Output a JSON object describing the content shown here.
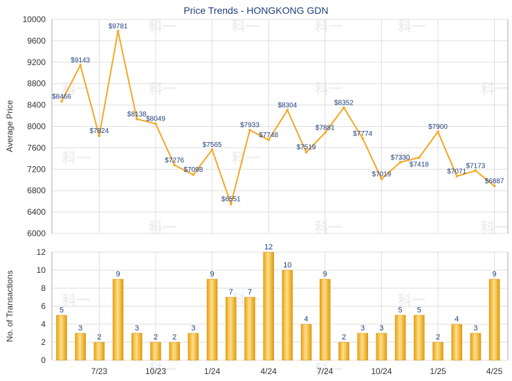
{
  "chart_data": [
    {
      "type": "line",
      "title": "Price Trends - HONGKONG GDN",
      "ylabel": "Average Price",
      "ylim": [
        6000,
        10000
      ],
      "yticks": [
        6000,
        6400,
        6800,
        7200,
        7600,
        8000,
        8400,
        8800,
        9200,
        9600,
        10000
      ],
      "grid": true,
      "line_color": "#f5a623",
      "series": [
        {
          "values": [
            8466,
            9143,
            7824,
            9781,
            8138,
            8049,
            7276,
            7098,
            7565,
            6551,
            7933,
            7748,
            8304,
            7519,
            7881,
            8352,
            7774,
            7019,
            7330,
            7418,
            7900,
            7071,
            7173,
            6887
          ],
          "labels": [
            "$8466",
            "$9143",
            "$7824",
            "$9781",
            "$8138",
            "$8049",
            "$7276",
            "$7098",
            "$7565",
            "$6551",
            "$7933",
            "$7748",
            "$8304",
            "$7519",
            "$7881",
            "$8352",
            "$7774",
            "$7019",
            "$7330",
            "",
            "$7900",
            "$7071",
            "$7173",
            "$6887"
          ]
        }
      ]
    },
    {
      "type": "bar",
      "ylabel": "No. of Transactions",
      "ylim": [
        0,
        12
      ],
      "yticks": [
        0,
        2,
        4,
        6,
        8,
        10,
        12
      ],
      "grid": true,
      "bar_color": "#f5b82e",
      "values": [
        5,
        3,
        2,
        9,
        3,
        2,
        2,
        3,
        9,
        7,
        7,
        12,
        10,
        4,
        9,
        2,
        3,
        3,
        5,
        5,
        2,
        4,
        3,
        9
      ],
      "xtick_labels": [
        "",
        "",
        "7/23",
        "",
        "",
        "10/23",
        "",
        "",
        "1/24",
        "",
        "",
        "4/24",
        "",
        "",
        "7/24",
        "",
        "",
        "10/24",
        "",
        "",
        "1/25",
        "",
        "",
        "4/25"
      ]
    }
  ],
  "watermark": "科一",
  "extra_labels": [
    "$7418"
  ]
}
